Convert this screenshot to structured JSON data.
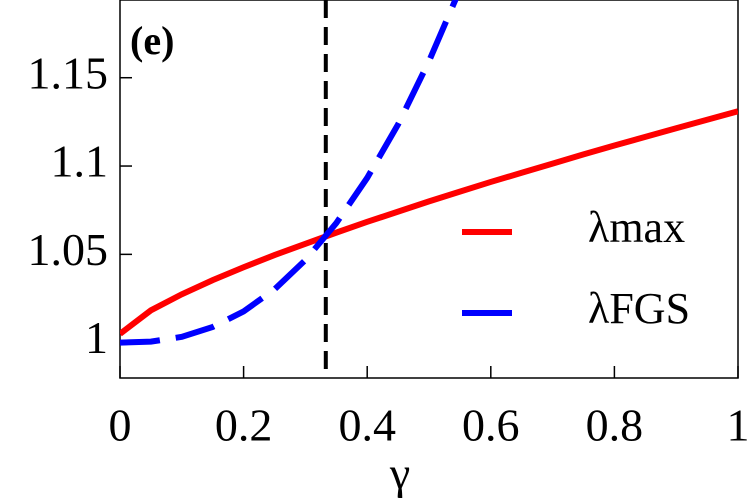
{
  "chart_data": {
    "type": "line",
    "annotation": "(e)",
    "xlabel": "γ",
    "x": [
      0,
      0.05,
      0.1,
      0.15,
      0.2,
      0.25,
      0.3,
      0.35,
      0.4,
      0.45,
      0.5,
      0.55,
      0.6,
      0.65,
      0.7,
      0.75,
      0.8,
      0.85,
      0.9,
      0.95,
      1
    ],
    "series": [
      {
        "name": "λmax",
        "color": "#ff0000",
        "dash": false,
        "values": [
          1.005,
          1.0183,
          1.0274,
          1.0354,
          1.0427,
          1.0496,
          1.056,
          1.0623,
          1.0684,
          1.0742,
          1.08,
          1.0855,
          1.091,
          1.0962,
          1.1014,
          1.1066,
          1.1116,
          1.1165,
          1.1214,
          1.1262,
          1.131
        ]
      },
      {
        "name": "λFGS",
        "color": "#0000ff",
        "dash": true,
        "values": [
          1.0,
          1.0006,
          1.0033,
          1.0089,
          1.0177,
          1.0302,
          1.0468,
          1.0677,
          1.0933,
          1.1236,
          1.1594,
          1.2,
          null,
          null,
          null,
          null,
          null,
          null,
          null,
          null,
          null
        ]
      }
    ],
    "vline": 0.333,
    "xlim": [
      0,
      1
    ],
    "xticks": [
      0,
      0.2,
      0.4,
      0.6,
      0.8,
      1
    ],
    "ylim": [
      0.98,
      1.194
    ],
    "yticks": [
      1,
      1.05,
      1.1,
      1.15
    ]
  }
}
